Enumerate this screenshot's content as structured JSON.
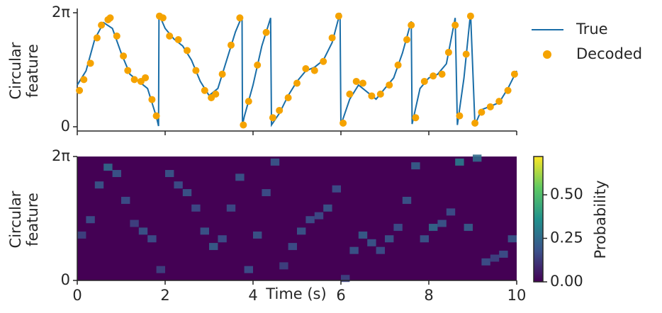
{
  "chart_data": [
    {
      "type": "line_scatter",
      "ylabel": "Circular\nfeature",
      "xlim": [
        0,
        10
      ],
      "xticks": [
        0,
        2,
        4,
        6,
        8,
        10
      ],
      "ylim": [
        0,
        6.283
      ],
      "yticks": [
        0,
        {
          "value": 6.283,
          "label": "2π"
        }
      ],
      "series": [
        {
          "name": "True",
          "kind": "line",
          "color": "#1a6ea8",
          "x": [
            0,
            0.2,
            0.4,
            0.6,
            0.8,
            1.0,
            1.2,
            1.4,
            1.6,
            1.8,
            1.85,
            1.86,
            2.0,
            2.2,
            2.4,
            2.6,
            2.8,
            3.0,
            3.2,
            3.4,
            3.6,
            3.75,
            3.76,
            3.8,
            4.0,
            4.2,
            4.4,
            4.42,
            4.6,
            4.8,
            5.0,
            5.2,
            5.4,
            5.6,
            5.8,
            5.98,
            6.0,
            6.2,
            6.4,
            6.6,
            6.8,
            7.0,
            7.2,
            7.4,
            7.6,
            7.62,
            7.8,
            8.0,
            8.2,
            8.4,
            8.6,
            8.65,
            8.8,
            8.95,
            9.05,
            9.2,
            9.4,
            9.6,
            9.8,
            10
          ],
          "values": [
            2.3,
            3.08,
            4.84,
            5.74,
            5.42,
            4.06,
            2.89,
            2.5,
            2.11,
            0.55,
            0.04,
            6.2,
            5.42,
            4.84,
            4.45,
            3.67,
            2.5,
            1.72,
            2.11,
            3.67,
            5.23,
            6.1,
            0.1,
            0.55,
            2.3,
            4.45,
            6.0,
            0.1,
            0.74,
            1.72,
            2.5,
            3.08,
            3.28,
            3.67,
            4.64,
            6.28,
            0.1,
            1.52,
            2.3,
            1.91,
            1.52,
            2.11,
            2.69,
            4.06,
            5.81,
            0.15,
            2.11,
            2.69,
            2.89,
            3.47,
            6.0,
            0.1,
            2.69,
            6.28,
            0.1,
            0.94,
            1.13,
            1.33,
            2.11,
            3.08
          ]
        },
        {
          "name": "Decoded",
          "kind": "scatter",
          "color": "#f5a300",
          "x": [
            0.05,
            0.15,
            0.3,
            0.45,
            0.55,
            0.7,
            0.75,
            0.9,
            1.05,
            1.15,
            1.3,
            1.45,
            1.55,
            1.7,
            1.8,
            1.87,
            1.95,
            2.1,
            2.3,
            2.5,
            2.7,
            2.9,
            3.05,
            3.15,
            3.3,
            3.5,
            3.7,
            3.78,
            3.9,
            4.1,
            4.3,
            4.45,
            4.6,
            4.8,
            5.0,
            5.2,
            5.4,
            5.6,
            5.8,
            5.95,
            6.05,
            6.2,
            6.35,
            6.5,
            6.7,
            6.9,
            7.1,
            7.3,
            7.5,
            7.6,
            7.7,
            7.9,
            8.1,
            8.3,
            8.45,
            8.6,
            8.7,
            8.85,
            8.95,
            9.05,
            9.2,
            9.4,
            9.6,
            9.8,
            9.95
          ],
          "values": [
            2.0,
            2.6,
            3.5,
            4.9,
            5.6,
            5.9,
            6.0,
            5.0,
            3.9,
            3.1,
            2.6,
            2.5,
            2.7,
            1.5,
            0.6,
            6.1,
            6.0,
            5.0,
            4.8,
            4.2,
            3.1,
            2.0,
            1.6,
            1.8,
            2.9,
            4.5,
            6.0,
            0.1,
            1.4,
            3.4,
            5.2,
            0.5,
            0.9,
            1.6,
            2.4,
            3.2,
            3.1,
            3.6,
            4.9,
            6.1,
            0.2,
            1.8,
            2.5,
            2.4,
            1.7,
            1.8,
            2.3,
            3.4,
            4.8,
            5.6,
            0.5,
            2.5,
            2.8,
            2.9,
            4.1,
            5.6,
            0.6,
            4.0,
            6.1,
            0.2,
            0.8,
            1.1,
            1.4,
            2.0,
            2.9
          ]
        }
      ],
      "legend": "outside-right"
    },
    {
      "type": "heatmap",
      "ylabel": "Circular\nfeature",
      "xlabel": "Time (s)",
      "xlim": [
        0,
        10
      ],
      "xticks": [
        0,
        2,
        4,
        6,
        8,
        10
      ],
      "ylim": [
        0,
        6.283
      ],
      "yticks": [
        0,
        {
          "value": 6.283,
          "label": "2π"
        }
      ],
      "x": [
        0,
        0.2,
        0.4,
        0.6,
        0.8,
        1.0,
        1.2,
        1.4,
        1.6,
        1.8,
        2.0,
        2.2,
        2.4,
        2.6,
        2.8,
        3.0,
        3.2,
        3.4,
        3.6,
        3.8,
        4.0,
        4.2,
        4.4,
        4.6,
        4.8,
        5.0,
        5.2,
        5.4,
        5.6,
        5.8,
        6.0,
        6.2,
        6.4,
        6.6,
        6.8,
        7.0,
        7.2,
        7.4,
        7.6,
        7.8,
        8.0,
        8.2,
        8.4,
        8.6,
        8.8,
        9.0,
        9.2,
        9.4,
        9.6,
        9.8
      ],
      "values": [
        2.3,
        3.08,
        4.84,
        5.74,
        5.42,
        4.06,
        2.89,
        2.5,
        2.11,
        0.55,
        5.42,
        4.84,
        4.45,
        3.67,
        2.5,
        1.72,
        2.11,
        3.67,
        5.23,
        0.55,
        2.3,
        4.45,
        6.0,
        0.74,
        1.72,
        2.5,
        3.08,
        3.28,
        3.67,
        4.64,
        0.1,
        1.52,
        2.3,
        1.91,
        1.52,
        2.11,
        2.69,
        4.06,
        5.81,
        2.11,
        2.69,
        2.89,
        3.47,
        6.0,
        2.69,
        6.2,
        0.94,
        1.13,
        1.33,
        2.11
      ],
      "intensity": [
        0.15,
        0.18,
        0.2,
        0.25,
        0.2,
        0.18,
        0.15,
        0.2,
        0.18,
        0.15,
        0.2,
        0.18,
        0.2,
        0.17,
        0.2,
        0.22,
        0.18,
        0.17,
        0.2,
        0.18,
        0.2,
        0.18,
        0.2,
        0.15,
        0.18,
        0.2,
        0.18,
        0.17,
        0.2,
        0.18,
        0.15,
        0.2,
        0.22,
        0.2,
        0.18,
        0.2,
        0.18,
        0.2,
        0.22,
        0.2,
        0.25,
        0.2,
        0.18,
        0.3,
        0.22,
        0.25,
        0.18,
        0.15,
        0.18,
        0.2
      ],
      "colorbar": {
        "label": "Probability",
        "lim": [
          0,
          0.72
        ],
        "ticks": [
          {
            "value": 0,
            "label": "0.00"
          },
          {
            "value": 0.25,
            "label": "0.25"
          },
          {
            "value": 0.5,
            "label": "0.50"
          }
        ],
        "colormap": "viridis"
      }
    }
  ]
}
